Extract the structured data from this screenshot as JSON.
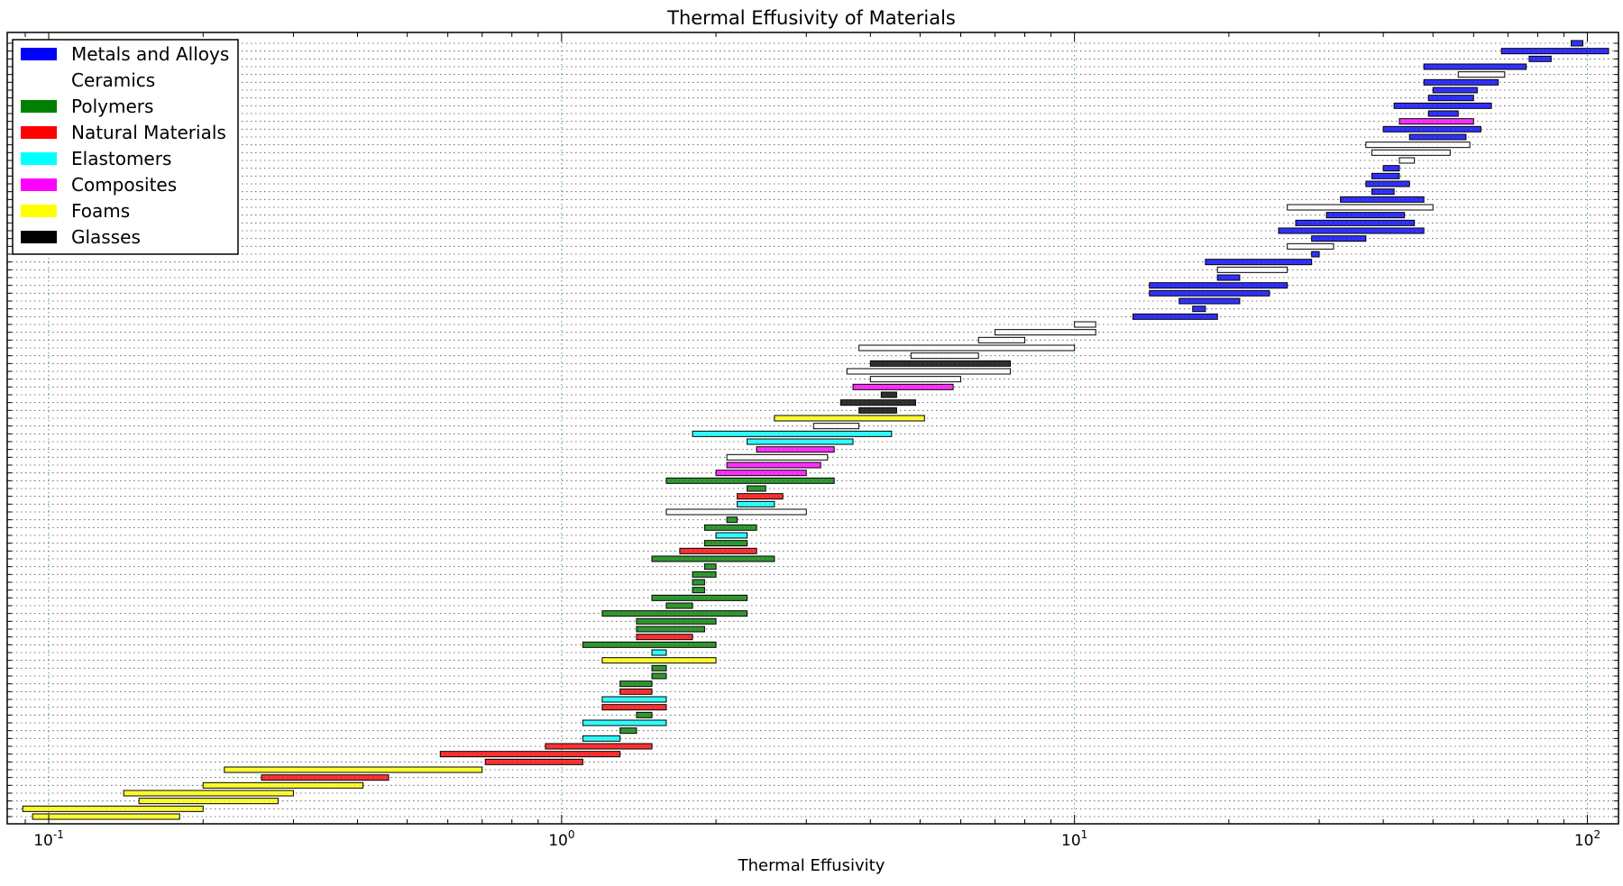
{
  "chart_data": {
    "type": "bar",
    "orientation": "horizontal-range",
    "title": "Thermal Effusivity of Materials",
    "xlabel": "Thermal Effusivity",
    "ylabel": "",
    "xscale": "log",
    "xlim": [
      0.083,
      115
    ],
    "x_ticks": [
      {
        "value": 0.1,
        "base": "10",
        "exp": "-1"
      },
      {
        "value": 1,
        "base": "10",
        "exp": "0"
      },
      {
        "value": 10,
        "base": "10",
        "exp": "1"
      },
      {
        "value": 100,
        "base": "10",
        "exp": "2"
      }
    ],
    "grid": true,
    "legend_position": "top-left",
    "legend": [
      {
        "name": "Metals and Alloys",
        "color": "#0000ff"
      },
      {
        "name": "Ceramics",
        "color": "#ffffff"
      },
      {
        "name": "Polymers",
        "color": "#008000"
      },
      {
        "name": "Natural Materials",
        "color": "#ff0000"
      },
      {
        "name": "Elastomers",
        "color": "#00ffff"
      },
      {
        "name": "Composites",
        "color": "#ff00ff"
      },
      {
        "name": "Foams",
        "color": "#ffff00"
      },
      {
        "name": "Glasses",
        "color": "#000000"
      }
    ],
    "bars": [
      {
        "c": "Metals and Alloys",
        "lo": 93,
        "hi": 98
      },
      {
        "c": "Metals and Alloys",
        "lo": 68,
        "hi": 110
      },
      {
        "c": "Metals and Alloys",
        "lo": 77,
        "hi": 85
      },
      {
        "c": "Metals and Alloys",
        "lo": 48,
        "hi": 76
      },
      {
        "c": "Ceramics",
        "lo": 56,
        "hi": 69
      },
      {
        "c": "Metals and Alloys",
        "lo": 48,
        "hi": 67
      },
      {
        "c": "Metals and Alloys",
        "lo": 50,
        "hi": 61
      },
      {
        "c": "Metals and Alloys",
        "lo": 49,
        "hi": 60
      },
      {
        "c": "Metals and Alloys",
        "lo": 42,
        "hi": 65
      },
      {
        "c": "Metals and Alloys",
        "lo": 49,
        "hi": 56
      },
      {
        "c": "Composites",
        "lo": 43,
        "hi": 60
      },
      {
        "c": "Metals and Alloys",
        "lo": 40,
        "hi": 62
      },
      {
        "c": "Metals and Alloys",
        "lo": 45,
        "hi": 58
      },
      {
        "c": "Ceramics",
        "lo": 37,
        "hi": 59
      },
      {
        "c": "Ceramics",
        "lo": 38,
        "hi": 54
      },
      {
        "c": "Ceramics",
        "lo": 43,
        "hi": 46
      },
      {
        "c": "Metals and Alloys",
        "lo": 40,
        "hi": 43
      },
      {
        "c": "Metals and Alloys",
        "lo": 38,
        "hi": 43
      },
      {
        "c": "Metals and Alloys",
        "lo": 37,
        "hi": 45
      },
      {
        "c": "Metals and Alloys",
        "lo": 38,
        "hi": 42
      },
      {
        "c": "Metals and Alloys",
        "lo": 33,
        "hi": 48
      },
      {
        "c": "Ceramics",
        "lo": 26,
        "hi": 50
      },
      {
        "c": "Metals and Alloys",
        "lo": 31,
        "hi": 44
      },
      {
        "c": "Metals and Alloys",
        "lo": 27,
        "hi": 46
      },
      {
        "c": "Metals and Alloys",
        "lo": 25,
        "hi": 48
      },
      {
        "c": "Metals and Alloys",
        "lo": 29,
        "hi": 37
      },
      {
        "c": "Ceramics",
        "lo": 26,
        "hi": 32
      },
      {
        "c": "Metals and Alloys",
        "lo": 29,
        "hi": 30
      },
      {
        "c": "Metals and Alloys",
        "lo": 18,
        "hi": 29
      },
      {
        "c": "Ceramics",
        "lo": 19,
        "hi": 26
      },
      {
        "c": "Metals and Alloys",
        "lo": 19,
        "hi": 21
      },
      {
        "c": "Metals and Alloys",
        "lo": 14,
        "hi": 26
      },
      {
        "c": "Metals and Alloys",
        "lo": 14,
        "hi": 24
      },
      {
        "c": "Metals and Alloys",
        "lo": 16,
        "hi": 21
      },
      {
        "c": "Metals and Alloys",
        "lo": 17,
        "hi": 18
      },
      {
        "c": "Metals and Alloys",
        "lo": 13,
        "hi": 19
      },
      {
        "c": "Ceramics",
        "lo": 10,
        "hi": 11
      },
      {
        "c": "Ceramics",
        "lo": 7,
        "hi": 11
      },
      {
        "c": "Ceramics",
        "lo": 6.5,
        "hi": 8
      },
      {
        "c": "Ceramics",
        "lo": 3.8,
        "hi": 10
      },
      {
        "c": "Ceramics",
        "lo": 4.8,
        "hi": 6.5
      },
      {
        "c": "Glasses",
        "lo": 4,
        "hi": 7.5
      },
      {
        "c": "Ceramics",
        "lo": 3.6,
        "hi": 7.5
      },
      {
        "c": "Ceramics",
        "lo": 4,
        "hi": 6
      },
      {
        "c": "Composites",
        "lo": 3.7,
        "hi": 5.8
      },
      {
        "c": "Glasses",
        "lo": 4.2,
        "hi": 4.5
      },
      {
        "c": "Glasses",
        "lo": 3.5,
        "hi": 4.9
      },
      {
        "c": "Glasses",
        "lo": 3.8,
        "hi": 4.5
      },
      {
        "c": "Foams",
        "lo": 2.6,
        "hi": 5.1
      },
      {
        "c": "Ceramics",
        "lo": 3.1,
        "hi": 3.8
      },
      {
        "c": "Elastomers",
        "lo": 1.8,
        "hi": 4.4
      },
      {
        "c": "Elastomers",
        "lo": 2.3,
        "hi": 3.7
      },
      {
        "c": "Composites",
        "lo": 2.4,
        "hi": 3.4
      },
      {
        "c": "Ceramics",
        "lo": 2.1,
        "hi": 3.3
      },
      {
        "c": "Composites",
        "lo": 2.1,
        "hi": 3.2
      },
      {
        "c": "Composites",
        "lo": 2,
        "hi": 3
      },
      {
        "c": "Polymers",
        "lo": 1.6,
        "hi": 3.4
      },
      {
        "c": "Polymers",
        "lo": 2.3,
        "hi": 2.5
      },
      {
        "c": "Natural Materials",
        "lo": 2.2,
        "hi": 2.7
      },
      {
        "c": "Elastomers",
        "lo": 2.2,
        "hi": 2.6
      },
      {
        "c": "Ceramics",
        "lo": 1.6,
        "hi": 3
      },
      {
        "c": "Polymers",
        "lo": 2.1,
        "hi": 2.2
      },
      {
        "c": "Polymers",
        "lo": 1.9,
        "hi": 2.4
      },
      {
        "c": "Elastomers",
        "lo": 2,
        "hi": 2.3
      },
      {
        "c": "Polymers",
        "lo": 1.9,
        "hi": 2.3
      },
      {
        "c": "Natural Materials",
        "lo": 1.7,
        "hi": 2.4
      },
      {
        "c": "Polymers",
        "lo": 1.5,
        "hi": 2.6
      },
      {
        "c": "Polymers",
        "lo": 1.9,
        "hi": 2
      },
      {
        "c": "Polymers",
        "lo": 1.8,
        "hi": 2
      },
      {
        "c": "Polymers",
        "lo": 1.8,
        "hi": 1.9
      },
      {
        "c": "Polymers",
        "lo": 1.8,
        "hi": 1.9
      },
      {
        "c": "Polymers",
        "lo": 1.5,
        "hi": 2.3
      },
      {
        "c": "Polymers",
        "lo": 1.6,
        "hi": 1.8
      },
      {
        "c": "Polymers",
        "lo": 1.2,
        "hi": 2.3
      },
      {
        "c": "Polymers",
        "lo": 1.4,
        "hi": 2
      },
      {
        "c": "Polymers",
        "lo": 1.4,
        "hi": 1.9
      },
      {
        "c": "Natural Materials",
        "lo": 1.4,
        "hi": 1.8
      },
      {
        "c": "Polymers",
        "lo": 1.1,
        "hi": 2
      },
      {
        "c": "Elastomers",
        "lo": 1.5,
        "hi": 1.6
      },
      {
        "c": "Foams",
        "lo": 1.2,
        "hi": 2
      },
      {
        "c": "Polymers",
        "lo": 1.5,
        "hi": 1.6
      },
      {
        "c": "Polymers",
        "lo": 1.5,
        "hi": 1.6
      },
      {
        "c": "Polymers",
        "lo": 1.3,
        "hi": 1.5
      },
      {
        "c": "Natural Materials",
        "lo": 1.3,
        "hi": 1.5
      },
      {
        "c": "Elastomers",
        "lo": 1.2,
        "hi": 1.6
      },
      {
        "c": "Natural Materials",
        "lo": 1.2,
        "hi": 1.6
      },
      {
        "c": "Polymers",
        "lo": 1.4,
        "hi": 1.5
      },
      {
        "c": "Elastomers",
        "lo": 1.1,
        "hi": 1.6
      },
      {
        "c": "Polymers",
        "lo": 1.3,
        "hi": 1.4
      },
      {
        "c": "Elastomers",
        "lo": 1.1,
        "hi": 1.3
      },
      {
        "c": "Natural Materials",
        "lo": 0.93,
        "hi": 1.5
      },
      {
        "c": "Natural Materials",
        "lo": 0.58,
        "hi": 1.3
      },
      {
        "c": "Natural Materials",
        "lo": 0.71,
        "hi": 1.1
      },
      {
        "c": "Foams",
        "lo": 0.22,
        "hi": 0.7
      },
      {
        "c": "Natural Materials",
        "lo": 0.26,
        "hi": 0.46
      },
      {
        "c": "Foams",
        "lo": 0.2,
        "hi": 0.41
      },
      {
        "c": "Foams",
        "lo": 0.14,
        "hi": 0.3
      },
      {
        "c": "Foams",
        "lo": 0.15,
        "hi": 0.28
      },
      {
        "c": "Foams",
        "lo": 0.089,
        "hi": 0.2
      },
      {
        "c": "Foams",
        "lo": 0.093,
        "hi": 0.18
      }
    ]
  }
}
